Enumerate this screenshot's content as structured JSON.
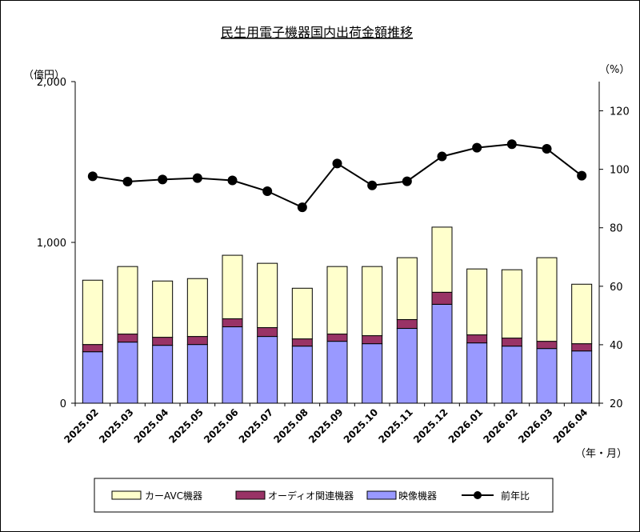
{
  "chart_data": {
    "type": "bar",
    "stacked": true,
    "title": "民生用電子機器国内出荷金額推移",
    "left_axis": {
      "unit": "（億円）",
      "ylim": [
        0,
        2000
      ],
      "ticks": [
        0,
        1000,
        2000
      ],
      "tick_labels": [
        "0",
        "1,000",
        "2,000"
      ]
    },
    "right_axis": {
      "unit": "（%）",
      "ylim": [
        20,
        130
      ],
      "ticks": [
        20,
        40,
        60,
        80,
        100,
        120
      ],
      "tick_labels": [
        "20",
        "40",
        "60",
        "80",
        "100",
        "120"
      ]
    },
    "x_unit": "（年・月）",
    "categories": [
      "2025.02",
      "2025.03",
      "2025.04",
      "2025.05",
      "2025.06",
      "2025.07",
      "2025.08",
      "2025.09",
      "2025.10",
      "2025.11",
      "2025.12",
      "2026.01",
      "2026.02",
      "2026.03",
      "2026.04"
    ],
    "series": [
      {
        "name": "映像機器",
        "color": "#9999ff",
        "values": [
          320,
          380,
          360,
          365,
          475,
          415,
          355,
          385,
          370,
          465,
          615,
          375,
          355,
          340,
          325
        ]
      },
      {
        "name": "オーディオ関連機器",
        "color": "#993366",
        "values": [
          45,
          50,
          50,
          50,
          50,
          55,
          45,
          45,
          50,
          55,
          75,
          50,
          50,
          45,
          45
        ]
      },
      {
        "name": "カーAVC機器",
        "color": "#ffffcc",
        "values": [
          400,
          420,
          350,
          360,
          395,
          400,
          315,
          420,
          430,
          385,
          405,
          410,
          425,
          520,
          370
        ]
      },
      {
        "name": "前年比",
        "type": "line",
        "axis": "right",
        "color": "#000000",
        "values": [
          97.6,
          95.8,
          96.5,
          97.0,
          96.2,
          92.5,
          87.0,
          102.0,
          94.5,
          95.9,
          104.4,
          107.4,
          108.6,
          107.0,
          97.8
        ]
      }
    ],
    "legend": {
      "position": "bottom",
      "items": [
        {
          "label": "カーAVC機器",
          "kind": "box",
          "color": "#ffffcc"
        },
        {
          "label": "オーディオ関連機器",
          "kind": "box",
          "color": "#993366"
        },
        {
          "label": "映像機器",
          "kind": "box",
          "color": "#9999ff"
        },
        {
          "label": "前年比",
          "kind": "line",
          "color": "#000000"
        }
      ]
    },
    "grid": false
  }
}
